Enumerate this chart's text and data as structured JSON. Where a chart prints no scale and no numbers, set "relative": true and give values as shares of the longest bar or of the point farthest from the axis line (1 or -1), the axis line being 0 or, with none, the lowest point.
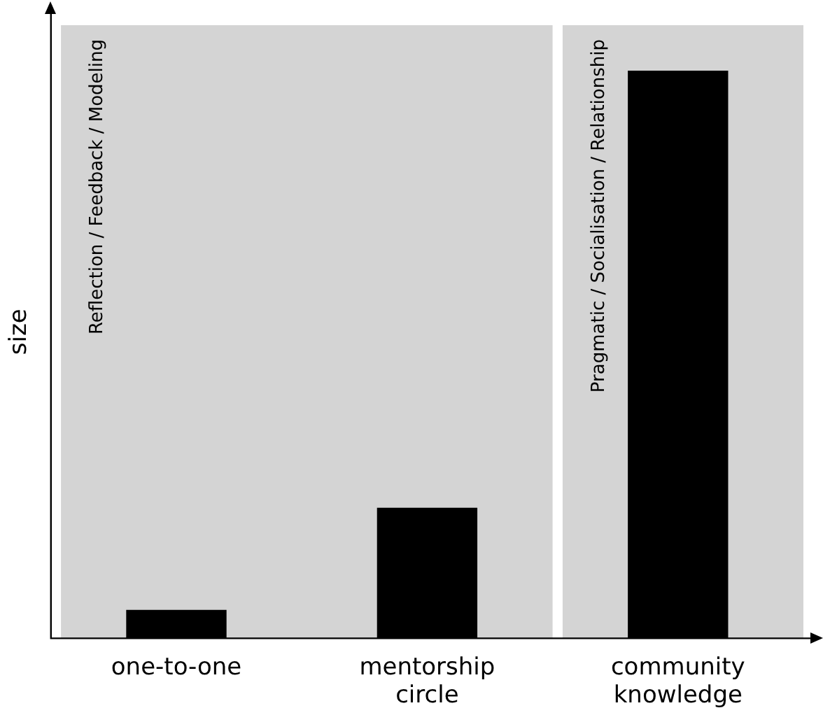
{
  "chart_data": {
    "type": "bar",
    "ylabel": "size",
    "categories": [
      "one-to-one",
      "mentorship circle",
      "community knowledge"
    ],
    "values": [
      0.05,
      0.23,
      1
    ],
    "color": "#000000",
    "relative": true,
    "tick_labels": "x",
    "grid": false,
    "legend": false,
    "bands": [
      {
        "axis": "x",
        "from": "one-to-one",
        "to": "mentorship circle",
        "label": "Reflection / Feedback / Modeling",
        "color": "#d4d4d4"
      },
      {
        "axis": "x",
        "from": "community knowledge",
        "to": "community knowledge",
        "label": "Pragmatic / Socialisation / Relationship",
        "color": "#d4d4d4"
      }
    ]
  }
}
